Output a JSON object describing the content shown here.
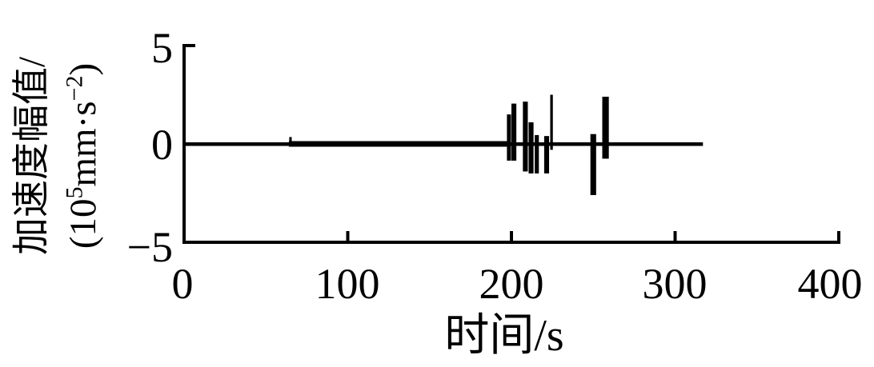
{
  "chart_data": {
    "type": "line",
    "title": "",
    "xlabel": "时间/s",
    "ylabel": "加速度幅值/(10⁵mm·s⁻²)",
    "ylabel_line1": "加速度幅值/",
    "ylabel_line2_parts": {
      "p1": "(10",
      "sup1": "5",
      "p2": "mm·s",
      "sup2": "−2",
      "p3": ")"
    },
    "xlim": [
      0,
      400
    ],
    "ylim": [
      -5,
      5
    ],
    "xticks": [
      0,
      100,
      200,
      300,
      400
    ],
    "yticks": [
      5,
      0,
      -5
    ],
    "xtick_labels": [
      "0",
      "100",
      "200",
      "300",
      "400"
    ],
    "ytick_labels": [
      "5",
      "0",
      "−5"
    ],
    "grid": false,
    "legend": false,
    "line_color": "#000000",
    "background_color": "#ffffff",
    "series_name": "acceleration amplitude",
    "signal": {
      "baseline_value": 0,
      "t_start": 0,
      "t_end": 317,
      "noise_band": {
        "t_start": 64,
        "t_end": 199,
        "amplitude": 0.12
      },
      "blip": {
        "t": 65,
        "width_s": 1.5,
        "max": 0.35,
        "min": -0.1
      },
      "spikes": [
        {
          "t": 198.5,
          "width_s": 2.5,
          "max": 1.5,
          "min": -0.85
        },
        {
          "t": 201.5,
          "width_s": 3.0,
          "max": 2.05,
          "min": -0.85
        },
        {
          "t": 208.5,
          "width_s": 3.0,
          "max": 2.15,
          "min": -1.4
        },
        {
          "t": 212.0,
          "width_s": 3.0,
          "max": 1.1,
          "min": -1.5
        },
        {
          "t": 215.5,
          "width_s": 2.5,
          "max": 0.45,
          "min": -1.5
        },
        {
          "t": 221.5,
          "width_s": 3.0,
          "max": 0.4,
          "min": -1.5
        },
        {
          "t": 224.5,
          "width_s": 1.6,
          "max": 2.5,
          "min": -0.3
        },
        {
          "t": 250.0,
          "width_s": 3.5,
          "max": 0.5,
          "min": -2.6
        },
        {
          "t": 257.5,
          "width_s": 4.0,
          "max": 2.4,
          "min": -0.75
        }
      ]
    }
  }
}
